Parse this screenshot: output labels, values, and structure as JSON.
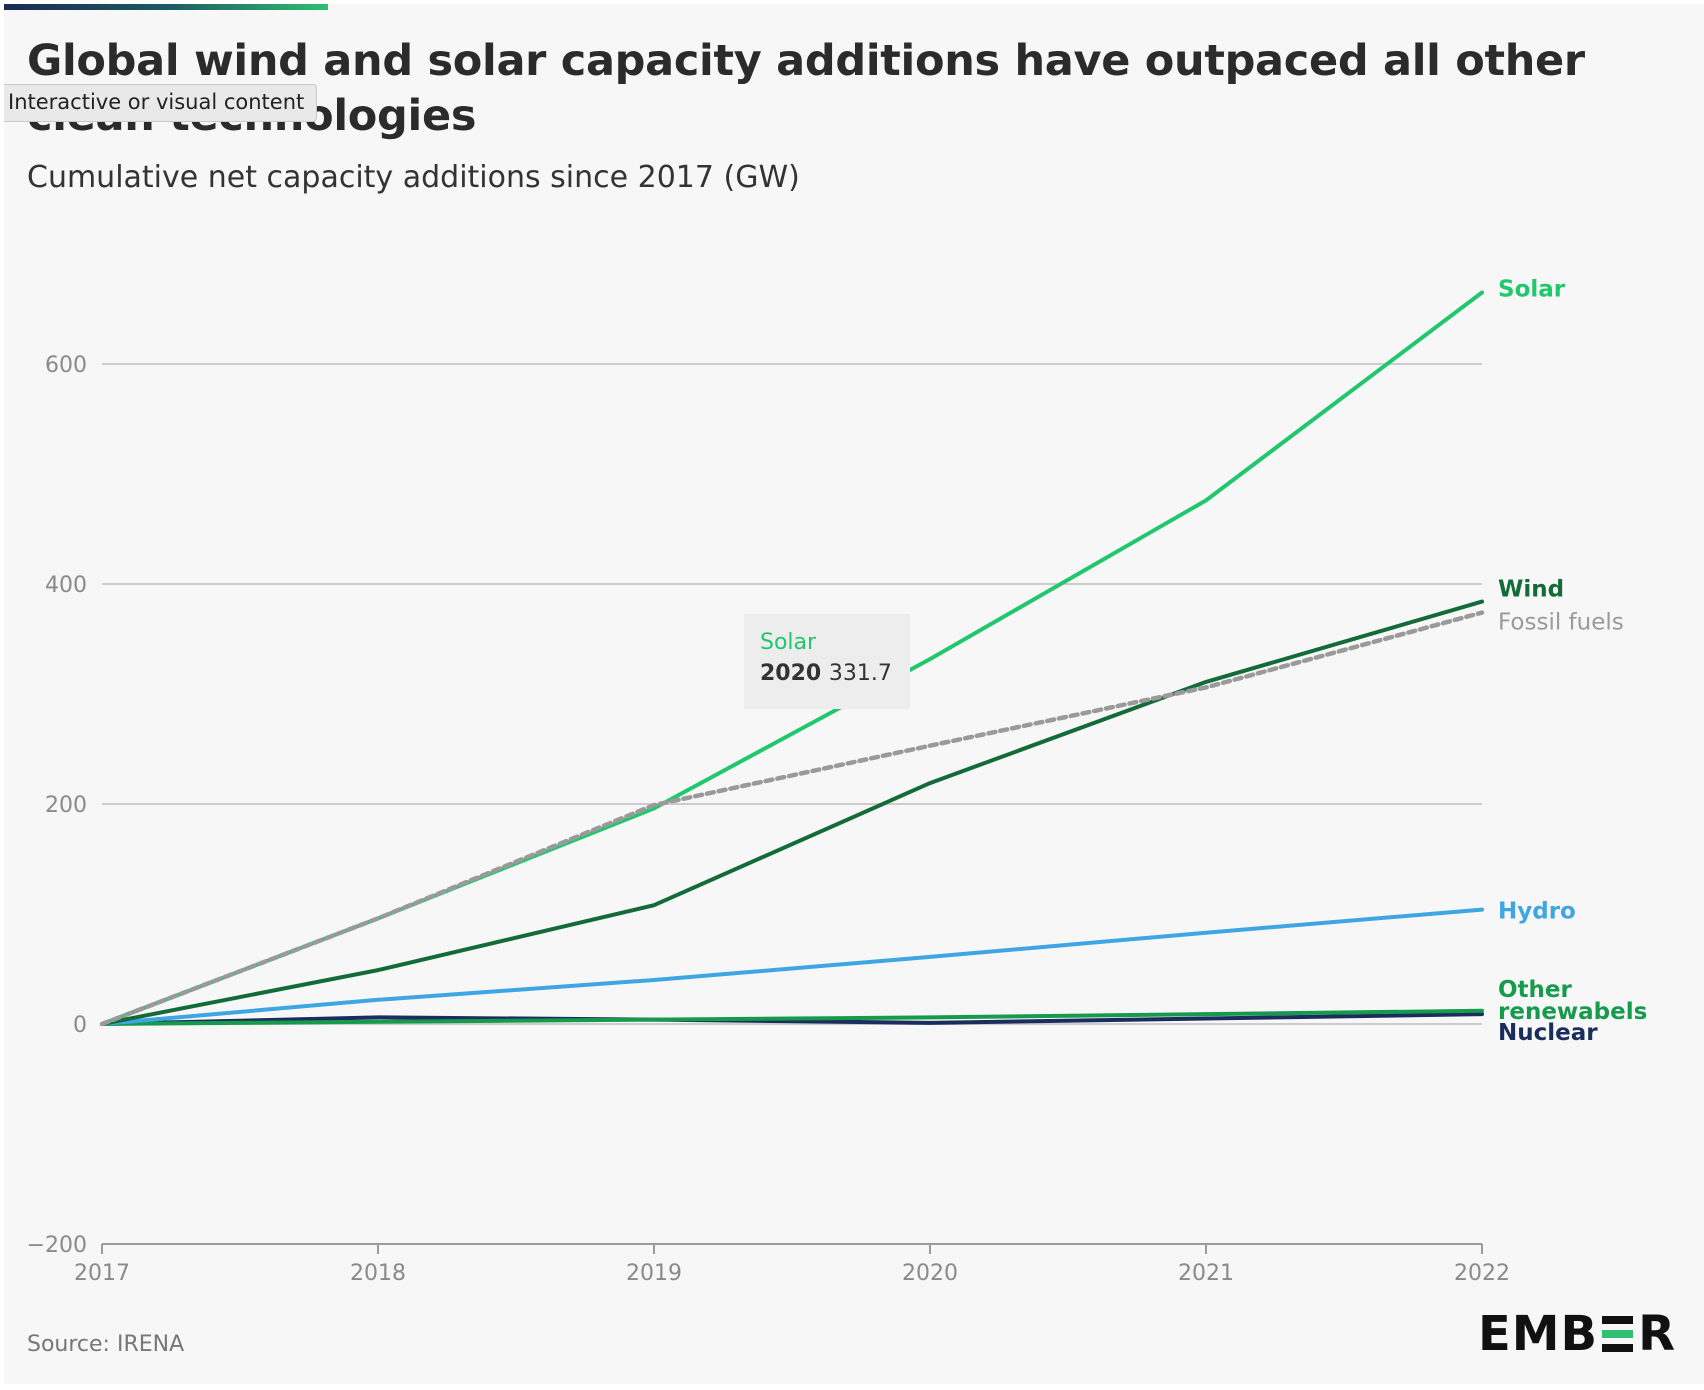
{
  "title": "Global wind and solar capacity additions have outpaced all other clean technologies",
  "subtitle": "Cumulative net capacity additions since 2017 (GW)",
  "overlay_badge": "Interactive or visual content",
  "source": "Source: IRENA",
  "brand": {
    "letters_before": "EMB",
    "letters_after": "R",
    "accent_color": "#2fbf71"
  },
  "tooltip": {
    "series": "Solar",
    "year": "2020",
    "value": "331.7"
  },
  "chart_data": {
    "type": "line",
    "x": [
      2017,
      2018,
      2019,
      2020,
      2021,
      2022
    ],
    "ylim": [
      -200,
      660
    ],
    "yticks": [
      -200,
      0,
      200,
      400,
      600
    ],
    "xticks": [
      2017,
      2018,
      2019,
      2020,
      2021,
      2022
    ],
    "grid": true,
    "legend": "direct labels at line ends, right",
    "series": [
      {
        "name": "Solar",
        "label": "Solar",
        "color": "#20c76c",
        "dashed": false,
        "values": [
          0,
          96,
          196,
          331.7,
          476,
          665
        ]
      },
      {
        "name": "Wind",
        "label": "Wind",
        "color": "#146b3a",
        "dashed": false,
        "values": [
          0,
          49,
          108,
          219,
          311,
          384
        ]
      },
      {
        "name": "Fossil fuels",
        "label": "Fossil fuels",
        "color": "#9a9a9a",
        "dashed": true,
        "values": [
          0,
          96,
          199,
          253,
          306,
          374
        ]
      },
      {
        "name": "Hydro",
        "label": "Hydro",
        "color": "#3ea6e3",
        "dashed": false,
        "values": [
          0,
          22,
          40,
          61,
          83,
          104
        ]
      },
      {
        "name": "Other renewabels",
        "label": "Other renewabels",
        "color": "#169b4d",
        "dashed": false,
        "values": [
          0,
          2,
          4,
          6,
          9,
          12
        ]
      },
      {
        "name": "Nuclear",
        "label": "Nuclear",
        "color": "#1a2d5c",
        "dashed": false,
        "values": [
          0,
          6,
          4,
          1,
          5,
          9
        ]
      }
    ]
  }
}
